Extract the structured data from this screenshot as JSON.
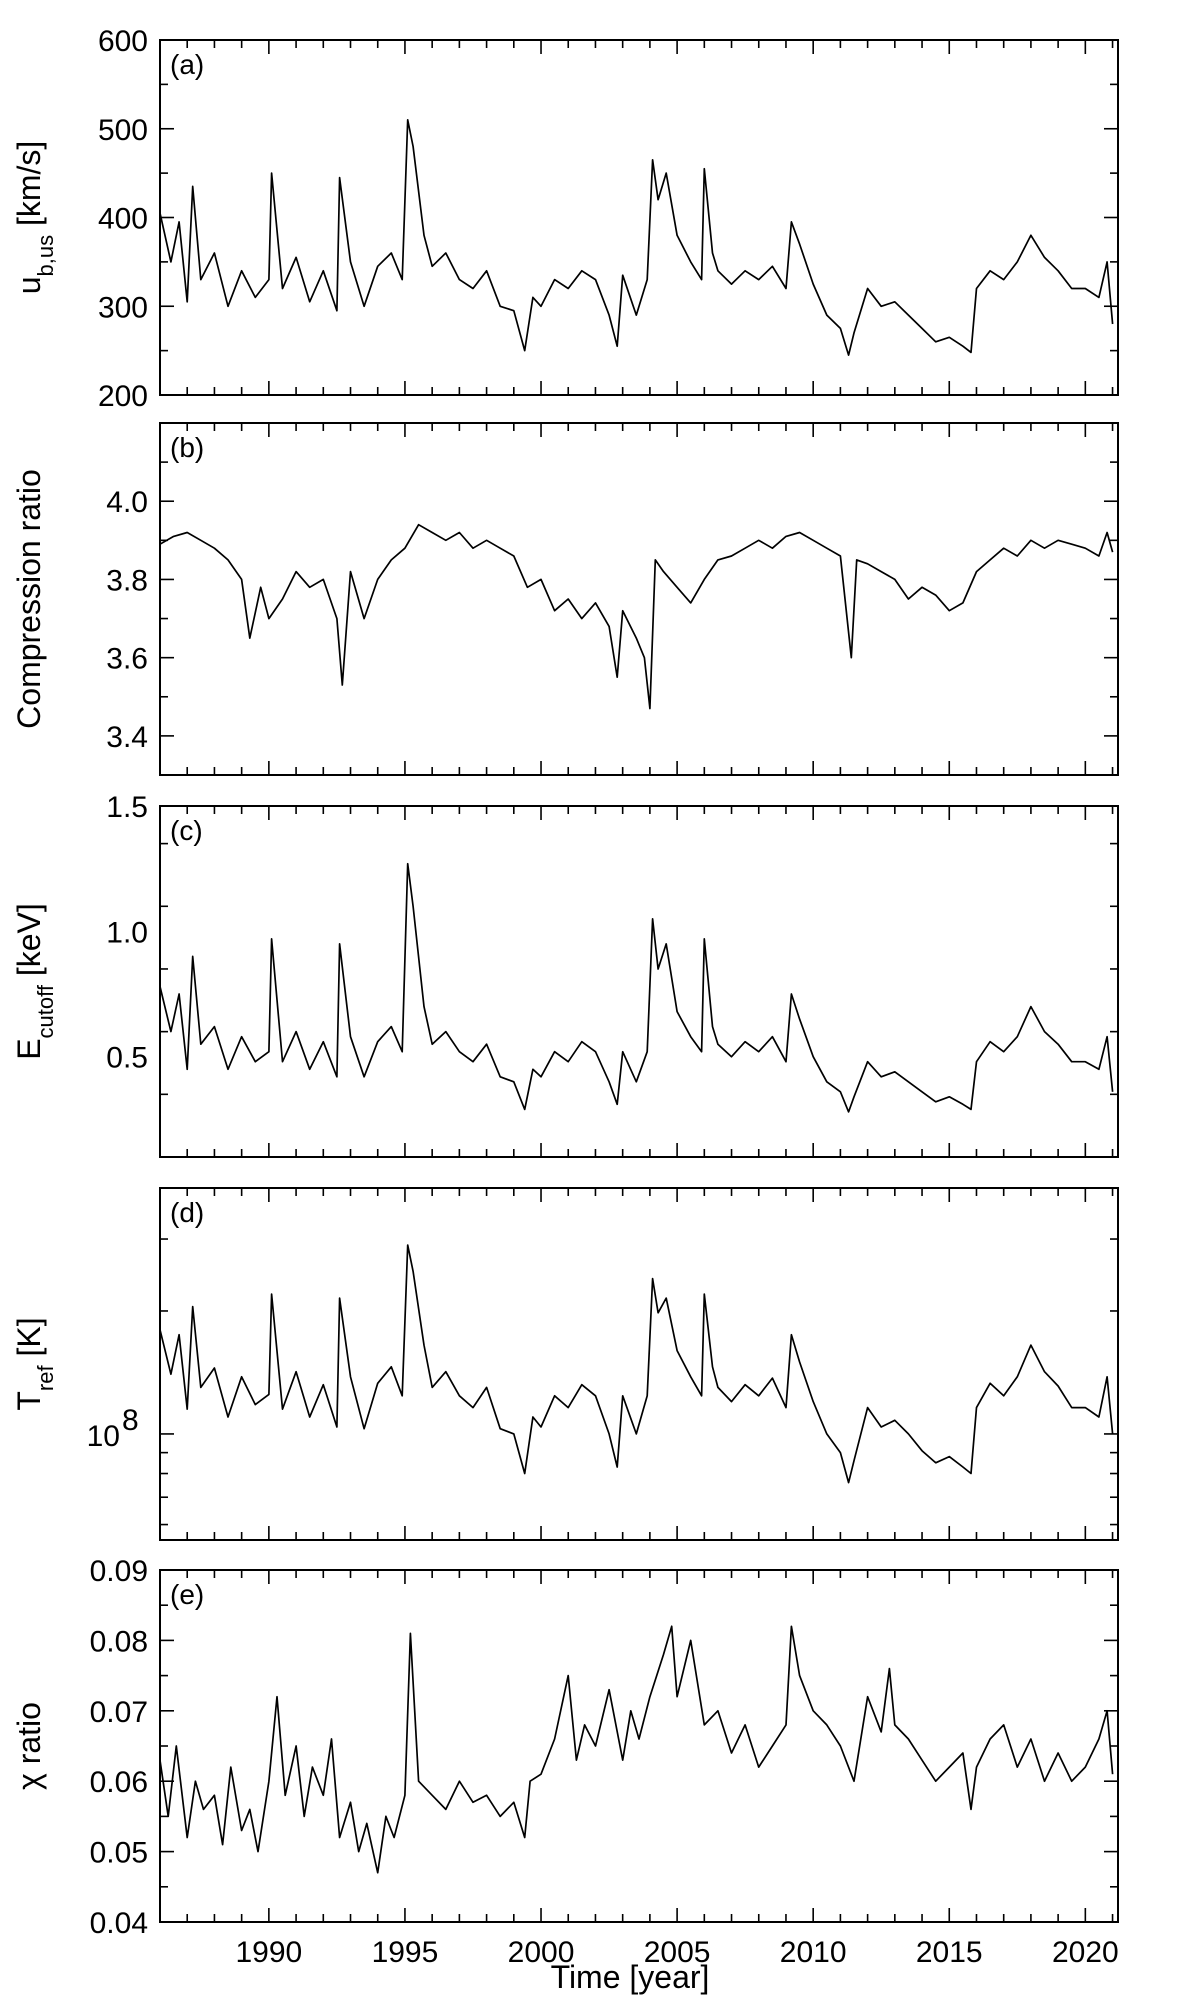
{
  "figure": {
    "xlabel": "Time [year]",
    "xlim": [
      1986,
      2021.2
    ],
    "xticks": [
      1990,
      1995,
      2000,
      2005,
      2010,
      2015,
      2020
    ]
  },
  "chart_data": [
    {
      "type": "line",
      "tag": "(a)",
      "ylabel_main": "u",
      "ylabel_sub": "b,us",
      "ylabel_unit": " [km/s]",
      "ylim": [
        200,
        600
      ],
      "yticks": [
        200,
        300,
        400,
        500,
        600
      ],
      "ytick_labels": [
        "200",
        "300",
        "400",
        "500",
        "600"
      ],
      "log": false,
      "series": [
        {
          "x": [
            1986.0,
            1986.4,
            1986.7,
            1987.0,
            1987.2,
            1987.5,
            1988.0,
            1988.5,
            1989.0,
            1989.5,
            1990.0,
            1990.1,
            1990.5,
            1991.0,
            1991.5,
            1992.0,
            1992.5,
            1992.6,
            1993.0,
            1993.5,
            1994.0,
            1994.5,
            1994.9,
            1995.1,
            1995.3,
            1995.7,
            1996.0,
            1996.5,
            1997.0,
            1997.5,
            1998.0,
            1998.5,
            1999.0,
            1999.4,
            1999.7,
            2000.0,
            2000.5,
            2001.0,
            2001.5,
            2002.0,
            2002.5,
            2002.8,
            2003.0,
            2003.5,
            2003.9,
            2004.1,
            2004.3,
            2004.6,
            2005.0,
            2005.5,
            2005.9,
            2006.0,
            2006.3,
            2006.5,
            2007.0,
            2007.5,
            2008.0,
            2008.5,
            2009.0,
            2009.2,
            2009.5,
            2010.0,
            2010.5,
            2011.0,
            2011.3,
            2011.5,
            2012.0,
            2012.5,
            2013.0,
            2013.5,
            2014.0,
            2014.5,
            2015.0,
            2015.5,
            2015.8,
            2016.0,
            2016.5,
            2017.0,
            2017.5,
            2018.0,
            2018.5,
            2019.0,
            2019.5,
            2020.0,
            2020.5,
            2020.8,
            2021.0
          ],
          "y": [
            405,
            350,
            395,
            305,
            435,
            330,
            360,
            300,
            340,
            310,
            330,
            450,
            320,
            355,
            305,
            340,
            295,
            445,
            350,
            300,
            345,
            360,
            330,
            510,
            480,
            380,
            345,
            360,
            330,
            320,
            340,
            300,
            295,
            250,
            310,
            300,
            330,
            320,
            340,
            330,
            290,
            255,
            335,
            290,
            330,
            465,
            420,
            450,
            380,
            350,
            330,
            455,
            360,
            340,
            325,
            340,
            330,
            345,
            320,
            395,
            370,
            325,
            290,
            275,
            245,
            270,
            320,
            300,
            305,
            290,
            275,
            260,
            265,
            255,
            248,
            320,
            340,
            330,
            350,
            380,
            355,
            340,
            320,
            320,
            310,
            350,
            280
          ]
        }
      ]
    },
    {
      "type": "line",
      "tag": "(b)",
      "ylabel_main": "Compression ratio",
      "ylabel_sub": "",
      "ylabel_unit": "",
      "ylim": [
        3.3,
        4.2
      ],
      "yticks": [
        3.4,
        3.6,
        3.8,
        4.0
      ],
      "ytick_labels": [
        "3.4",
        "3.6",
        "3.8",
        "4.0"
      ],
      "log": false,
      "series": [
        {
          "x": [
            1986.0,
            1986.5,
            1987.0,
            1987.5,
            1988.0,
            1988.5,
            1989.0,
            1989.3,
            1989.7,
            1990.0,
            1990.5,
            1991.0,
            1991.5,
            1992.0,
            1992.5,
            1992.7,
            1993.0,
            1993.5,
            1994.0,
            1994.5,
            1995.0,
            1995.5,
            1996.0,
            1996.5,
            1997.0,
            1997.5,
            1998.0,
            1998.5,
            1999.0,
            1999.5,
            2000.0,
            2000.5,
            2001.0,
            2001.5,
            2002.0,
            2002.5,
            2002.8,
            2003.0,
            2003.5,
            2003.8,
            2004.0,
            2004.2,
            2004.5,
            2005.0,
            2005.5,
            2006.0,
            2006.5,
            2007.0,
            2007.5,
            2008.0,
            2008.5,
            2009.0,
            2009.5,
            2010.0,
            2010.5,
            2011.0,
            2011.4,
            2011.6,
            2012.0,
            2012.5,
            2013.0,
            2013.5,
            2014.0,
            2014.5,
            2015.0,
            2015.5,
            2016.0,
            2016.5,
            2017.0,
            2017.5,
            2018.0,
            2018.5,
            2019.0,
            2019.5,
            2020.0,
            2020.5,
            2020.8,
            2021.0
          ],
          "y": [
            3.89,
            3.91,
            3.92,
            3.9,
            3.88,
            3.85,
            3.8,
            3.65,
            3.78,
            3.7,
            3.75,
            3.82,
            3.78,
            3.8,
            3.7,
            3.53,
            3.82,
            3.7,
            3.8,
            3.85,
            3.88,
            3.94,
            3.92,
            3.9,
            3.92,
            3.88,
            3.9,
            3.88,
            3.86,
            3.78,
            3.8,
            3.72,
            3.75,
            3.7,
            3.74,
            3.68,
            3.55,
            3.72,
            3.65,
            3.6,
            3.47,
            3.85,
            3.82,
            3.78,
            3.74,
            3.8,
            3.85,
            3.86,
            3.88,
            3.9,
            3.88,
            3.91,
            3.92,
            3.9,
            3.88,
            3.86,
            3.6,
            3.85,
            3.84,
            3.82,
            3.8,
            3.75,
            3.78,
            3.76,
            3.72,
            3.74,
            3.82,
            3.85,
            3.88,
            3.86,
            3.9,
            3.88,
            3.9,
            3.89,
            3.88,
            3.86,
            3.92,
            3.87
          ]
        }
      ]
    },
    {
      "type": "line",
      "tag": "(c)",
      "ylabel_main": "E",
      "ylabel_sub": "cutoff",
      "ylabel_unit": " [keV]",
      "ylim": [
        0.1,
        1.5
      ],
      "yticks": [
        0.5,
        1.0,
        1.5
      ],
      "ytick_labels": [
        "0.5",
        "1.0",
        "1.5"
      ],
      "log": false,
      "series": [
        {
          "x": [
            1986.0,
            1986.4,
            1986.7,
            1987.0,
            1987.2,
            1987.5,
            1988.0,
            1988.5,
            1989.0,
            1989.5,
            1990.0,
            1990.1,
            1990.5,
            1991.0,
            1991.5,
            1992.0,
            1992.5,
            1992.6,
            1993.0,
            1993.5,
            1994.0,
            1994.5,
            1994.9,
            1995.1,
            1995.3,
            1995.7,
            1996.0,
            1996.5,
            1997.0,
            1997.5,
            1998.0,
            1998.5,
            1999.0,
            1999.4,
            1999.7,
            2000.0,
            2000.5,
            2001.0,
            2001.5,
            2002.0,
            2002.5,
            2002.8,
            2003.0,
            2003.5,
            2003.9,
            2004.1,
            2004.3,
            2004.6,
            2005.0,
            2005.5,
            2005.9,
            2006.0,
            2006.3,
            2006.5,
            2007.0,
            2007.5,
            2008.0,
            2008.5,
            2009.0,
            2009.2,
            2009.5,
            2010.0,
            2010.5,
            2011.0,
            2011.3,
            2011.5,
            2012.0,
            2012.5,
            2013.0,
            2013.5,
            2014.0,
            2014.5,
            2015.0,
            2015.5,
            2015.8,
            2016.0,
            2016.5,
            2017.0,
            2017.5,
            2018.0,
            2018.5,
            2019.0,
            2019.5,
            2020.0,
            2020.5,
            2020.8,
            2021.0
          ],
          "y": [
            0.78,
            0.6,
            0.75,
            0.45,
            0.9,
            0.55,
            0.62,
            0.45,
            0.58,
            0.48,
            0.52,
            0.97,
            0.48,
            0.6,
            0.45,
            0.56,
            0.42,
            0.95,
            0.58,
            0.42,
            0.56,
            0.62,
            0.52,
            1.27,
            1.1,
            0.7,
            0.55,
            0.6,
            0.52,
            0.48,
            0.55,
            0.42,
            0.4,
            0.29,
            0.45,
            0.42,
            0.52,
            0.48,
            0.56,
            0.52,
            0.4,
            0.31,
            0.52,
            0.4,
            0.52,
            1.05,
            0.85,
            0.95,
            0.68,
            0.58,
            0.52,
            0.97,
            0.62,
            0.55,
            0.5,
            0.56,
            0.52,
            0.58,
            0.48,
            0.75,
            0.65,
            0.5,
            0.4,
            0.36,
            0.28,
            0.34,
            0.48,
            0.42,
            0.44,
            0.4,
            0.36,
            0.32,
            0.34,
            0.31,
            0.29,
            0.48,
            0.56,
            0.52,
            0.58,
            0.7,
            0.6,
            0.55,
            0.48,
            0.48,
            0.45,
            0.58,
            0.36
          ]
        }
      ]
    },
    {
      "type": "line",
      "tag": "(d)",
      "ylabel_main": "T",
      "ylabel_sub": "ref",
      "ylabel_unit": " [K]",
      "ylim": [
        55000000,
        400000000
      ],
      "yticks": [
        100000000
      ],
      "ytick_labels": [
        "10"
      ],
      "ytick_exponent": "8",
      "log": true,
      "series": [
        {
          "x": [
            1986.0,
            1986.4,
            1986.7,
            1987.0,
            1987.2,
            1987.5,
            1988.0,
            1988.5,
            1989.0,
            1989.5,
            1990.0,
            1990.1,
            1990.5,
            1991.0,
            1991.5,
            1992.0,
            1992.5,
            1992.6,
            1993.0,
            1993.5,
            1994.0,
            1994.5,
            1994.9,
            1995.1,
            1995.3,
            1995.7,
            1996.0,
            1996.5,
            1997.0,
            1997.5,
            1998.0,
            1998.5,
            1999.0,
            1999.4,
            1999.7,
            2000.0,
            2000.5,
            2001.0,
            2001.5,
            2002.0,
            2002.5,
            2002.8,
            2003.0,
            2003.5,
            2003.9,
            2004.1,
            2004.3,
            2004.6,
            2005.0,
            2005.5,
            2005.9,
            2006.0,
            2006.3,
            2006.5,
            2007.0,
            2007.5,
            2008.0,
            2008.5,
            2009.0,
            2009.2,
            2009.5,
            2010.0,
            2010.5,
            2011.0,
            2011.3,
            2011.5,
            2012.0,
            2012.5,
            2013.0,
            2013.5,
            2014.0,
            2014.5,
            2015.0,
            2015.5,
            2015.8,
            2016.0,
            2016.5,
            2017.0,
            2017.5,
            2018.0,
            2018.5,
            2019.0,
            2019.5,
            2020.0,
            2020.5,
            2020.8,
            2021.0
          ],
          "y": [
            180000000,
            140000000,
            175000000,
            115000000,
            205000000,
            130000000,
            145000000,
            110000000,
            138000000,
            118000000,
            125000000,
            220000000,
            115000000,
            142000000,
            110000000,
            132000000,
            104000000,
            215000000,
            138000000,
            103000000,
            133000000,
            146000000,
            124000000,
            290000000,
            250000000,
            165000000,
            130000000,
            142000000,
            124000000,
            116000000,
            130000000,
            103000000,
            100000000,
            80000000,
            110000000,
            104000000,
            124000000,
            116000000,
            132000000,
            124000000,
            100000000,
            83000000,
            124000000,
            100000000,
            124000000,
            240000000,
            198000000,
            215000000,
            160000000,
            138000000,
            124000000,
            220000000,
            146000000,
            130000000,
            120000000,
            132000000,
            124000000,
            137000000,
            116000000,
            175000000,
            150000000,
            120000000,
            100000000,
            90000000,
            76000000,
            86000000,
            116000000,
            104000000,
            108000000,
            100000000,
            91000000,
            85000000,
            88000000,
            83000000,
            80000000,
            116000000,
            133000000,
            124000000,
            138000000,
            165000000,
            142000000,
            131000000,
            116000000,
            116000000,
            110000000,
            138000000,
            100000000
          ]
        }
      ]
    },
    {
      "type": "line",
      "tag": "(e)",
      "ylabel_main": "χ ratio",
      "ylabel_sub": "",
      "ylabel_unit": "",
      "ylim": [
        0.04,
        0.09
      ],
      "yticks": [
        0.04,
        0.05,
        0.06,
        0.07,
        0.08,
        0.09
      ],
      "ytick_labels": [
        "0.04",
        "0.05",
        "0.06",
        "0.07",
        "0.08",
        "0.09"
      ],
      "log": false,
      "series": [
        {
          "x": [
            1986.0,
            1986.3,
            1986.6,
            1987.0,
            1987.3,
            1987.6,
            1988.0,
            1988.3,
            1988.6,
            1989.0,
            1989.3,
            1989.6,
            1990.0,
            1990.3,
            1990.6,
            1991.0,
            1991.3,
            1991.6,
            1992.0,
            1992.3,
            1992.6,
            1993.0,
            1993.3,
            1993.6,
            1994.0,
            1994.3,
            1994.6,
            1995.0,
            1995.2,
            1995.5,
            1996.0,
            1996.5,
            1997.0,
            1997.5,
            1998.0,
            1998.5,
            1999.0,
            1999.4,
            1999.6,
            2000.0,
            2000.5,
            2001.0,
            2001.3,
            2001.6,
            2002.0,
            2002.5,
            2003.0,
            2003.3,
            2003.6,
            2004.0,
            2004.5,
            2004.8,
            2005.0,
            2005.5,
            2006.0,
            2006.5,
            2007.0,
            2007.5,
            2008.0,
            2008.5,
            2009.0,
            2009.2,
            2009.5,
            2010.0,
            2010.5,
            2011.0,
            2011.5,
            2012.0,
            2012.5,
            2012.8,
            2013.0,
            2013.5,
            2014.0,
            2014.5,
            2015.0,
            2015.5,
            2015.8,
            2016.0,
            2016.5,
            2017.0,
            2017.5,
            2018.0,
            2018.5,
            2019.0,
            2019.5,
            2020.0,
            2020.5,
            2020.8,
            2021.0
          ],
          "y": [
            0.063,
            0.055,
            0.065,
            0.052,
            0.06,
            0.056,
            0.058,
            0.051,
            0.062,
            0.053,
            0.056,
            0.05,
            0.06,
            0.072,
            0.058,
            0.065,
            0.055,
            0.062,
            0.058,
            0.066,
            0.052,
            0.057,
            0.05,
            0.054,
            0.047,
            0.055,
            0.052,
            0.058,
            0.081,
            0.06,
            0.058,
            0.056,
            0.06,
            0.057,
            0.058,
            0.055,
            0.057,
            0.052,
            0.06,
            0.061,
            0.066,
            0.075,
            0.063,
            0.068,
            0.065,
            0.073,
            0.063,
            0.07,
            0.066,
            0.072,
            0.078,
            0.082,
            0.072,
            0.08,
            0.068,
            0.07,
            0.064,
            0.068,
            0.062,
            0.065,
            0.068,
            0.082,
            0.075,
            0.07,
            0.068,
            0.065,
            0.06,
            0.072,
            0.067,
            0.076,
            0.068,
            0.066,
            0.063,
            0.06,
            0.062,
            0.064,
            0.056,
            0.062,
            0.066,
            0.068,
            0.062,
            0.066,
            0.06,
            0.064,
            0.06,
            0.062,
            0.066,
            0.07,
            0.061
          ]
        }
      ]
    }
  ]
}
